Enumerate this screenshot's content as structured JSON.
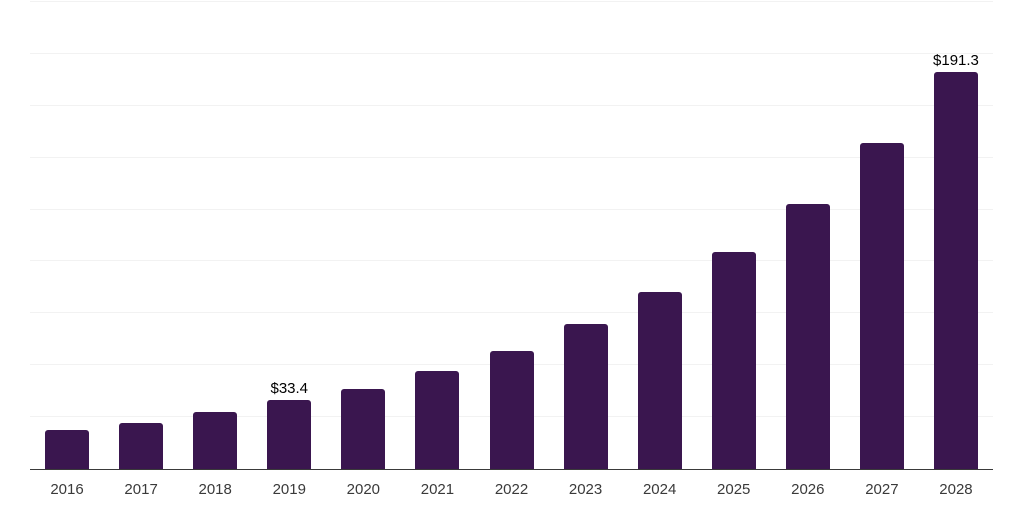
{
  "chart_data": {
    "type": "bar",
    "title": "",
    "xlabel": "",
    "ylabel": "",
    "categories": [
      "2016",
      "2017",
      "2018",
      "2019",
      "2020",
      "2021",
      "2022",
      "2023",
      "2024",
      "2025",
      "2026",
      "2027",
      "2028"
    ],
    "values": [
      18.6,
      22.3,
      27.4,
      33.4,
      38.4,
      47.1,
      57.0,
      69.8,
      85.2,
      104.5,
      127.6,
      156.9,
      191.3
    ],
    "point_labels": [
      null,
      null,
      null,
      "$33.4",
      null,
      null,
      null,
      null,
      null,
      null,
      null,
      null,
      "$191.3"
    ],
    "ylim": [
      0,
      225
    ],
    "grid_step": 25,
    "grid": "horizontal",
    "legend_position": "none",
    "colors": {
      "bar": "#3a164f",
      "grid": "#f2f2f2",
      "axis": "#3a3a3a",
      "tick_label": "#3a3a3a",
      "data_label": "#000000",
      "background": "#ffffff"
    }
  }
}
